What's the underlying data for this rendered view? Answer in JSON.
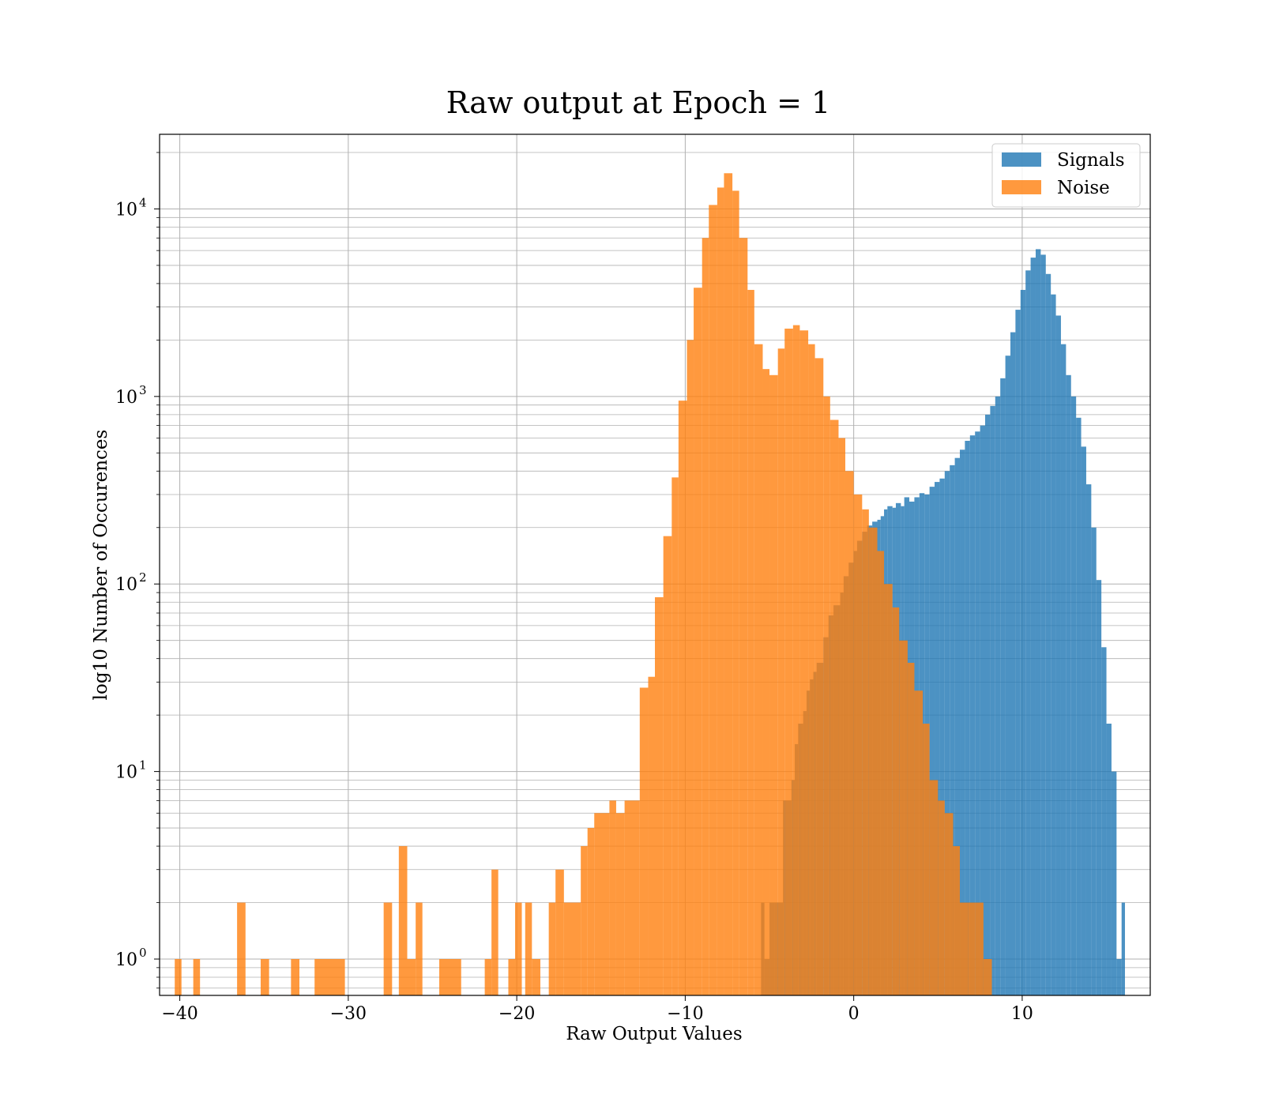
{
  "chart_data": {
    "type": "bar",
    "subtype": "overlaid-histogram",
    "title": "Raw output at Epoch = 1",
    "xlabel": "Raw Output Values",
    "ylabel": "log10 Number of Occurences",
    "xlim": [
      -41.2,
      17.6
    ],
    "ylim": [
      0.64,
      25000
    ],
    "yscale": "log",
    "xticks": [
      -40,
      -30,
      -20,
      -10,
      0,
      10
    ],
    "xtick_labels": [
      "−40",
      "−30",
      "−20",
      "−10",
      "0",
      "10"
    ],
    "yticks": [
      1,
      10,
      100,
      1000,
      10000
    ],
    "ytick_labels": [
      "10",
      "10",
      "10",
      "10",
      "10"
    ],
    "ytick_exponents": [
      "0",
      "1",
      "2",
      "3",
      "4"
    ],
    "grid": true,
    "legend_position": "top-right",
    "colors": {
      "signals": "#1f77b4",
      "noise": "#ff7f0e"
    },
    "series": [
      {
        "name": "Signals",
        "color": "#1f77b4",
        "opacity": 0.8,
        "bins": [
          [
            -5.5,
            -5.3,
            2
          ],
          [
            -5.3,
            -5.0,
            1
          ],
          [
            -5.0,
            -4.7,
            2
          ],
          [
            -4.7,
            -4.2,
            2
          ],
          [
            -4.2,
            -3.7,
            7
          ],
          [
            -3.7,
            -3.5,
            9
          ],
          [
            -3.5,
            -3.3,
            14
          ],
          [
            -3.3,
            -3.0,
            18
          ],
          [
            -3.0,
            -2.8,
            21
          ],
          [
            -2.8,
            -2.6,
            27
          ],
          [
            -2.6,
            -2.4,
            31
          ],
          [
            -2.4,
            -2.2,
            34
          ],
          [
            -2.2,
            -1.8,
            38
          ],
          [
            -1.8,
            -1.5,
            52
          ],
          [
            -1.5,
            -1.2,
            68
          ],
          [
            -1.2,
            -0.8,
            77
          ],
          [
            -0.8,
            -0.6,
            90
          ],
          [
            -0.6,
            -0.3,
            110
          ],
          [
            -0.3,
            0,
            130
          ],
          [
            0,
            0.2,
            150
          ],
          [
            0.2,
            0.5,
            170
          ],
          [
            0.5,
            0.8,
            190
          ],
          [
            0.8,
            1.1,
            205
          ],
          [
            1.1,
            1.4,
            215
          ],
          [
            1.4,
            1.6,
            220
          ],
          [
            1.6,
            1.8,
            230
          ],
          [
            1.8,
            2.0,
            250
          ],
          [
            2.0,
            2.3,
            260
          ],
          [
            2.3,
            2.5,
            255
          ],
          [
            2.5,
            2.8,
            270
          ],
          [
            2.8,
            3.0,
            260
          ],
          [
            3.0,
            3.3,
            290
          ],
          [
            3.3,
            3.6,
            275
          ],
          [
            3.6,
            3.9,
            290
          ],
          [
            3.9,
            4.2,
            305
          ],
          [
            4.2,
            4.5,
            300
          ],
          [
            4.5,
            4.8,
            330
          ],
          [
            4.8,
            5.1,
            350
          ],
          [
            5.1,
            5.4,
            365
          ],
          [
            5.4,
            5.7,
            400
          ],
          [
            5.7,
            6.0,
            430
          ],
          [
            6.0,
            6.3,
            470
          ],
          [
            6.3,
            6.6,
            520
          ],
          [
            6.6,
            6.9,
            580
          ],
          [
            6.9,
            7.2,
            620
          ],
          [
            7.2,
            7.5,
            650
          ],
          [
            7.5,
            7.8,
            700
          ],
          [
            7.8,
            8.1,
            800
          ],
          [
            8.1,
            8.4,
            890
          ],
          [
            8.4,
            8.7,
            1000
          ],
          [
            8.7,
            9.0,
            1250
          ],
          [
            9.0,
            9.3,
            1650
          ],
          [
            9.3,
            9.6,
            2200
          ],
          [
            9.6,
            9.9,
            2900
          ],
          [
            9.9,
            10.2,
            3700
          ],
          [
            10.2,
            10.5,
            4700
          ],
          [
            10.5,
            10.8,
            5500
          ],
          [
            10.8,
            11.1,
            6100
          ],
          [
            11.1,
            11.4,
            5700
          ],
          [
            11.4,
            11.7,
            4500
          ],
          [
            11.7,
            12.0,
            3500
          ],
          [
            12.0,
            12.3,
            2700
          ],
          [
            12.3,
            12.6,
            1900
          ],
          [
            12.6,
            12.9,
            1300
          ],
          [
            12.9,
            13.2,
            1000
          ],
          [
            13.2,
            13.5,
            770
          ],
          [
            13.5,
            13.8,
            540
          ],
          [
            13.8,
            14.1,
            340
          ],
          [
            14.1,
            14.4,
            200
          ],
          [
            14.4,
            14.7,
            105
          ],
          [
            14.7,
            15.0,
            46
          ],
          [
            15.0,
            15.3,
            18
          ],
          [
            15.3,
            15.6,
            10
          ],
          [
            15.6,
            15.9,
            1
          ],
          [
            15.9,
            16.1,
            2
          ]
        ]
      },
      {
        "name": "Noise",
        "color": "#ff7f0e",
        "opacity": 0.8,
        "bins": [
          [
            -40.3,
            -39.9,
            1
          ],
          [
            -39.2,
            -38.8,
            1
          ],
          [
            -36.6,
            -36.1,
            2
          ],
          [
            -35.2,
            -34.7,
            1
          ],
          [
            -33.4,
            -32.9,
            1
          ],
          [
            -32.0,
            -30.2,
            1
          ],
          [
            -27.9,
            -27.4,
            2
          ],
          [
            -27.0,
            -26.5,
            4
          ],
          [
            -26.5,
            -26.0,
            1
          ],
          [
            -26.0,
            -25.6,
            2
          ],
          [
            -24.6,
            -23.3,
            1
          ],
          [
            -21.9,
            -21.5,
            1
          ],
          [
            -21.5,
            -21.1,
            3
          ],
          [
            -20.5,
            -20.1,
            1
          ],
          [
            -20.1,
            -19.7,
            2
          ],
          [
            -19.5,
            -19.1,
            2
          ],
          [
            -19.1,
            -18.6,
            1
          ],
          [
            -18.1,
            -17.7,
            2
          ],
          [
            -17.7,
            -17.2,
            3
          ],
          [
            -17.2,
            -16.2,
            2
          ],
          [
            -16.2,
            -15.8,
            4
          ],
          [
            -15.8,
            -15.4,
            5
          ],
          [
            -15.4,
            -14.5,
            6
          ],
          [
            -14.5,
            -14.1,
            7
          ],
          [
            -14.1,
            -13.6,
            6
          ],
          [
            -13.6,
            -12.7,
            7
          ],
          [
            -12.7,
            -12.2,
            28
          ],
          [
            -12.2,
            -11.8,
            32
          ],
          [
            -11.8,
            -11.3,
            85
          ],
          [
            -11.3,
            -10.8,
            180
          ],
          [
            -10.8,
            -10.4,
            370
          ],
          [
            -10.4,
            -9.9,
            950
          ],
          [
            -9.9,
            -9.5,
            2000
          ],
          [
            -9.5,
            -9.0,
            3800
          ],
          [
            -9.0,
            -8.6,
            7000
          ],
          [
            -8.6,
            -8.1,
            10500
          ],
          [
            -8.1,
            -7.7,
            13000
          ],
          [
            -7.7,
            -7.2,
            15500
          ],
          [
            -7.2,
            -6.8,
            12500
          ],
          [
            -6.8,
            -6.3,
            7000
          ],
          [
            -6.3,
            -5.9,
            3700
          ],
          [
            -5.9,
            -5.4,
            1900
          ],
          [
            -5.4,
            -5.0,
            1400
          ],
          [
            -5.0,
            -4.5,
            1300
          ],
          [
            -4.5,
            -4.1,
            1800
          ],
          [
            -4.1,
            -3.6,
            2300
          ],
          [
            -3.6,
            -3.2,
            2400
          ],
          [
            -3.2,
            -2.7,
            2250
          ],
          [
            -2.7,
            -2.3,
            1900
          ],
          [
            -2.3,
            -1.8,
            1600
          ],
          [
            -1.8,
            -1.4,
            1000
          ],
          [
            -1.4,
            -0.9,
            750
          ],
          [
            -0.9,
            -0.5,
            600
          ],
          [
            -0.5,
            0,
            400
          ],
          [
            0,
            0.5,
            300
          ],
          [
            0.5,
            0.9,
            250
          ],
          [
            0.9,
            1.4,
            200
          ],
          [
            1.4,
            1.8,
            150
          ],
          [
            1.8,
            2.3,
            100
          ],
          [
            2.3,
            2.7,
            75
          ],
          [
            2.7,
            3.2,
            50
          ],
          [
            3.2,
            3.6,
            38
          ],
          [
            3.6,
            4.1,
            27
          ],
          [
            4.1,
            4.5,
            18
          ],
          [
            4.5,
            5.0,
            9
          ],
          [
            5.0,
            5.4,
            7
          ],
          [
            5.4,
            5.9,
            6
          ],
          [
            5.9,
            6.3,
            4
          ],
          [
            6.3,
            6.8,
            2
          ],
          [
            6.8,
            7.2,
            2
          ],
          [
            7.2,
            7.7,
            2
          ],
          [
            7.7,
            8.2,
            1
          ]
        ]
      }
    ]
  }
}
